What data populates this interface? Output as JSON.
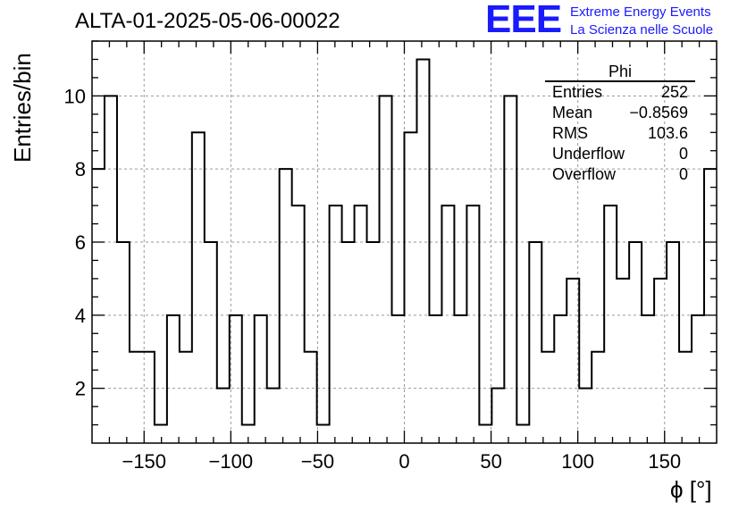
{
  "title": "ALTA-01-2025-05-06-00022",
  "logo": {
    "mark": "EEE",
    "line1": "Extreme Energy Events",
    "line2": "La Scienza nelle Scuole",
    "color": "#1a1aff"
  },
  "stats": {
    "name": "Phi",
    "rows": [
      {
        "label": "Entries",
        "value": "252"
      },
      {
        "label": "Mean",
        "value": "−0.8569"
      },
      {
        "label": "RMS",
        "value": "103.6"
      },
      {
        "label": "Underflow",
        "value": "0"
      },
      {
        "label": "Overflow",
        "value": "0"
      }
    ]
  },
  "chart_data": {
    "type": "histogram",
    "title": "ALTA-01-2025-05-06-00022",
    "xlabel": "ϕ [°]",
    "ylabel": "Entries/bin",
    "xlim": [
      -180,
      180
    ],
    "ylim": [
      0.5,
      11.5
    ],
    "grid": true,
    "bin_width": 7.2,
    "values": [
      8,
      10,
      6,
      3,
      3,
      1,
      4,
      3,
      9,
      6,
      2,
      4,
      1,
      4,
      2,
      8,
      7,
      3,
      1,
      7,
      6,
      7,
      6,
      10,
      4,
      9,
      11,
      4,
      7,
      4,
      7,
      1,
      2,
      10,
      1,
      6,
      3,
      4,
      5,
      2,
      3,
      7,
      5,
      6,
      4,
      5,
      6,
      3,
      4,
      8
    ],
    "xticks": [
      -150,
      -100,
      -50,
      0,
      50,
      100,
      150
    ],
    "yticks": [
      2,
      4,
      6,
      8,
      10
    ],
    "xtick_labels": [
      "−150",
      "−100",
      "−50",
      "0",
      "50",
      "100",
      "150"
    ],
    "ytick_labels": [
      "2",
      "4",
      "6",
      "8",
      "10"
    ]
  }
}
